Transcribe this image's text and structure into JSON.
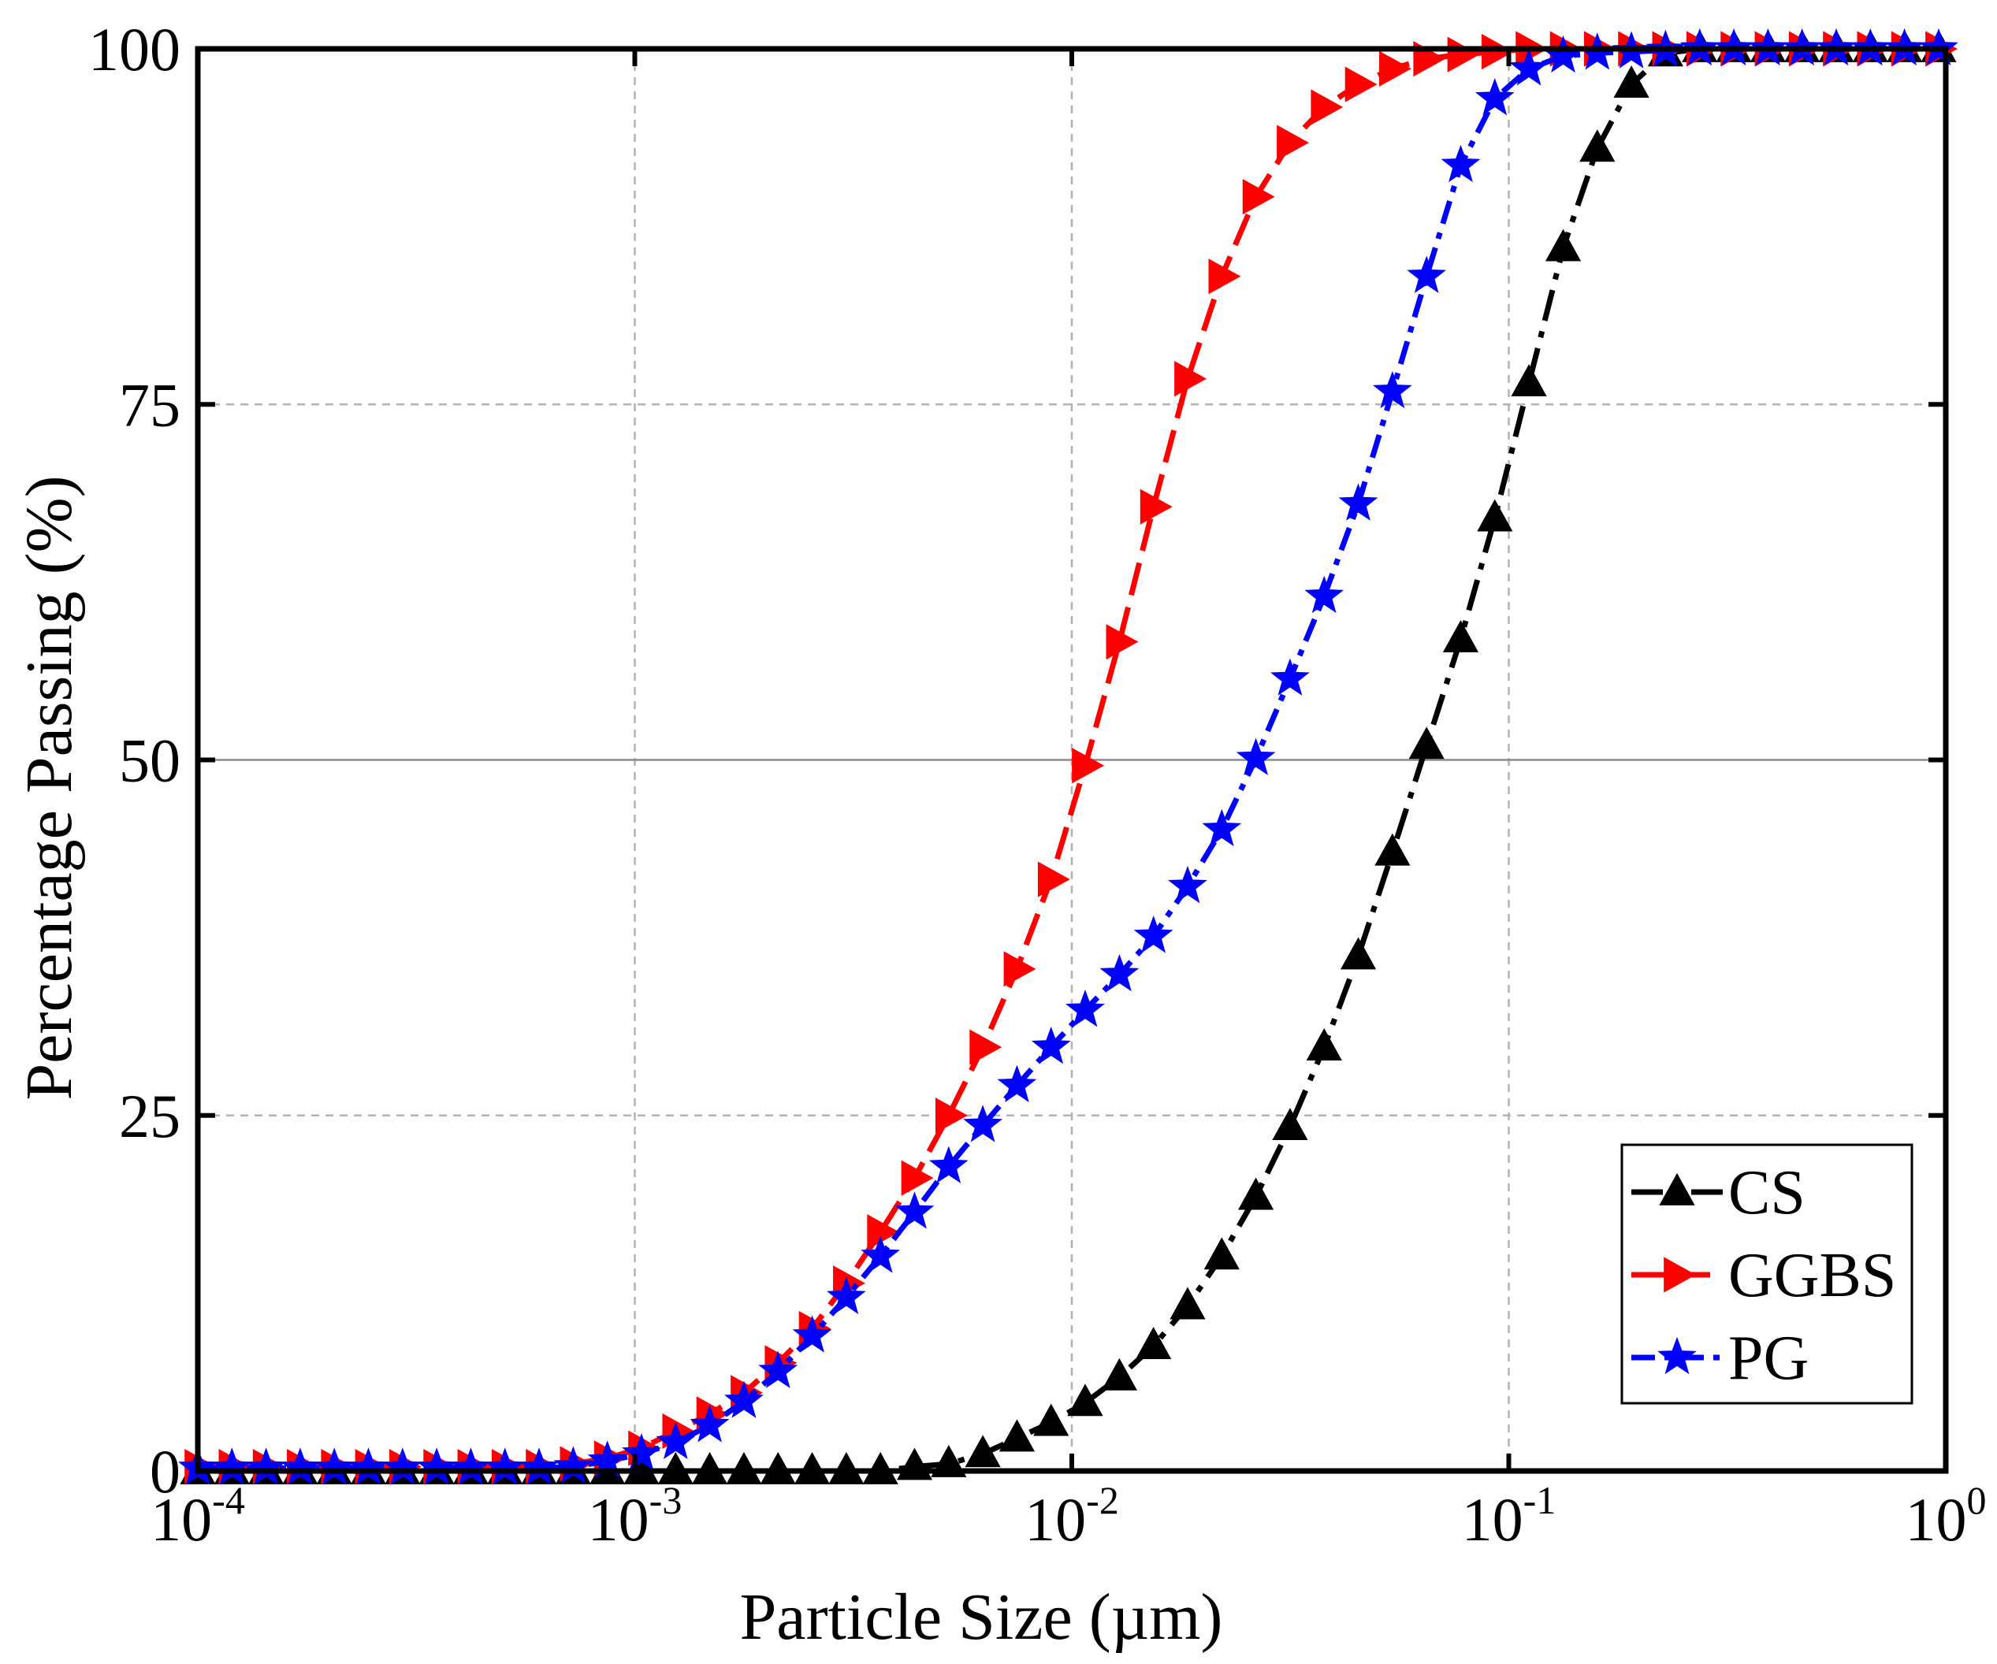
{
  "chart_data": {
    "type": "line",
    "title": "",
    "xlabel": "Particle Size (µm)",
    "ylabel": "Percentage Passing (%)",
    "x_scale": "log",
    "xlim": [
      0.0001,
      1
    ],
    "ylim": [
      0,
      100
    ],
    "grid": true,
    "legend_position": "bottom-right",
    "x_ticks": [
      {
        "base": "10",
        "exp": "-4"
      },
      {
        "base": "10",
        "exp": "-3"
      },
      {
        "base": "10",
        "exp": "-2"
      },
      {
        "base": "10",
        "exp": "-1"
      },
      {
        "base": "10",
        "exp": "0"
      }
    ],
    "y_ticks": [
      "0",
      "25",
      "50",
      "75",
      "100"
    ],
    "series": [
      {
        "name": "CS",
        "color": "#000000",
        "marker": "triangle-up",
        "x": [
          0.0001,
          0.0001197,
          0.0001433,
          0.0001715,
          0.0002053,
          0.0002457,
          0.0002941,
          0.0003521,
          0.0004214,
          0.0005045,
          0.0006039,
          0.0007229,
          0.0008653,
          0.001036,
          0.00124,
          0.001484,
          0.001777,
          0.002127,
          0.002546,
          0.003048,
          0.003648,
          0.004367,
          0.005228,
          0.006258,
          0.007491,
          0.008967,
          0.01073,
          0.01285,
          0.01538,
          0.01841,
          0.02204,
          0.02638,
          0.03158,
          0.0378,
          0.04525,
          0.05417,
          0.06485,
          0.07762,
          0.09292,
          0.1112,
          0.1332,
          0.1594,
          0.1908,
          0.2284,
          0.2735,
          0.3274,
          0.3919,
          0.4691,
          0.5615,
          0.6722,
          0.8046,
          0.9632
        ],
        "y": [
          0,
          0,
          0,
          0,
          0,
          0,
          0,
          0,
          0,
          0,
          0,
          0,
          0,
          0,
          0,
          0,
          0,
          0,
          0,
          0,
          0,
          0.3,
          0.5,
          1.2,
          2.3,
          3.4,
          4.8,
          6.6,
          8.8,
          11.6,
          15.1,
          19.3,
          24.2,
          29.8,
          36.2,
          43.5,
          51.0,
          58.5,
          67.0,
          76.5,
          86.0,
          93.0,
          97.5,
          99.7,
          100,
          100,
          100,
          100,
          100,
          100,
          100,
          100
        ]
      },
      {
        "name": "GGBS",
        "color": "#ff0000",
        "marker": "triangle-right",
        "x": [
          0.0001,
          0.0001197,
          0.0001433,
          0.0001715,
          0.0002053,
          0.0002457,
          0.0002941,
          0.0003521,
          0.0004214,
          0.0005045,
          0.0006039,
          0.0007229,
          0.0008653,
          0.001036,
          0.00124,
          0.001484,
          0.001777,
          0.002127,
          0.002546,
          0.003048,
          0.003648,
          0.004367,
          0.005228,
          0.006258,
          0.007491,
          0.008967,
          0.01073,
          0.01285,
          0.01538,
          0.01841,
          0.02204,
          0.02638,
          0.03158,
          0.0378,
          0.04525,
          0.05417,
          0.06485,
          0.07762,
          0.09292,
          0.1112,
          0.1332,
          0.1594,
          0.1908,
          0.2284,
          0.2735,
          0.3274,
          0.3919,
          0.4691,
          0.5615,
          0.6722,
          0.8046,
          0.9632
        ],
        "y": [
          0.3,
          0.3,
          0.3,
          0.3,
          0.3,
          0.3,
          0.3,
          0.3,
          0.3,
          0.3,
          0.3,
          0.5,
          0.9,
          1.6,
          2.8,
          4.0,
          5.5,
          7.6,
          10.0,
          13.2,
          16.8,
          20.6,
          25.0,
          29.8,
          35.3,
          41.6,
          49.6,
          58.3,
          67.8,
          76.8,
          84.0,
          89.6,
          93.4,
          95.9,
          97.5,
          98.6,
          99.3,
          99.6,
          99.8,
          100,
          100,
          100,
          100,
          100,
          100,
          100,
          100,
          100,
          100,
          100,
          100,
          100
        ]
      },
      {
        "name": "PG",
        "color": "#0000ff",
        "marker": "star",
        "x": [
          0.0001,
          0.0001197,
          0.0001433,
          0.0001715,
          0.0002053,
          0.0002457,
          0.0002941,
          0.0003521,
          0.0004214,
          0.0005045,
          0.0006039,
          0.0007229,
          0.0008653,
          0.001036,
          0.00124,
          0.001484,
          0.001777,
          0.002127,
          0.002546,
          0.003048,
          0.003648,
          0.004367,
          0.005228,
          0.006258,
          0.007491,
          0.008967,
          0.01073,
          0.01285,
          0.01538,
          0.01841,
          0.02204,
          0.02638,
          0.03158,
          0.0378,
          0.04525,
          0.05417,
          0.06485,
          0.07762,
          0.09292,
          0.1112,
          0.1332,
          0.1594,
          0.1908,
          0.2284,
          0.2735,
          0.3274,
          0.3919,
          0.4691,
          0.5615,
          0.6722,
          0.8046,
          0.9632
        ],
        "y": [
          0.2,
          0.2,
          0.2,
          0.2,
          0.2,
          0.2,
          0.2,
          0.2,
          0.2,
          0.2,
          0.2,
          0.3,
          0.7,
          1.2,
          2.0,
          3.2,
          4.9,
          7.0,
          9.5,
          12.2,
          15.1,
          18.2,
          21.4,
          24.3,
          27.1,
          29.8,
          32.4,
          34.9,
          37.6,
          41.1,
          45.1,
          50.1,
          55.7,
          61.5,
          68.0,
          75.9,
          84.0,
          91.8,
          96.5,
          98.6,
          99.5,
          99.7,
          99.8,
          99.9,
          100,
          100,
          100,
          100,
          100,
          100,
          100,
          100
        ]
      }
    ]
  }
}
